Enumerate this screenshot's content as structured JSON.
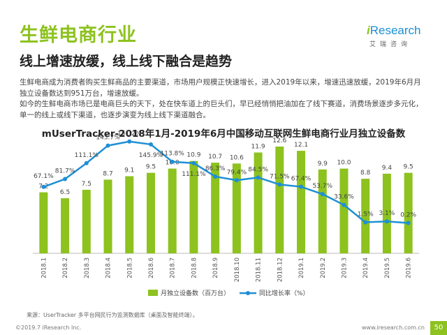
{
  "header": {
    "title": "生鲜电商行业",
    "subtitle": "线上增速放缓，线上线下融合是趋势"
  },
  "logo": {
    "i": "i",
    "brand": "Research",
    "cn": "艾瑞咨询"
  },
  "description": {
    "paragraph1": "生鲜电商成为消费者购买生鲜商品的主要渠道，市场用户规模正快速增长，进入2019年以来，增速迅速放缓，2019年6月月独立设备数达到951万台，增速放缓。",
    "paragraph2": "如今的生鲜电商市场已是电商巨头的天下，处在快车道上的巨头们，早已经悄悄把油加在了线下赛道，消费场景逐步多元化，单一的线上或线下渠道，也逐步演变为线上线下渠道融合。"
  },
  "chart_data": {
    "type": "bar",
    "title": "mUserTracker-2018年1月-2019年6月中国移动互联网生鲜电商行业月独立设备数",
    "categories": [
      "2018.1",
      "2018.2",
      "2018.3",
      "2018.4",
      "2018.5",
      "2018.6",
      "2018.7",
      "2018.8",
      "2018.9",
      "2018.10",
      "2018.11",
      "2018.12",
      "2019.1",
      "2019.2",
      "2019.3",
      "2019.4",
      "2019.5",
      "2019.6"
    ],
    "series": [
      {
        "name": "月独立设备数（百万台）",
        "kind": "bar",
        "values": [
          7.2,
          6.5,
          7.5,
          8.7,
          9.1,
          9.5,
          10.0,
          10.9,
          10.7,
          10.6,
          11.9,
          12.6,
          12.1,
          9.9,
          10.0,
          8.8,
          9.4,
          9.5
        ],
        "labels": [
          "7.2",
          "6.5",
          "7.5",
          "8.7",
          "9.1",
          "9.5",
          "10.0",
          "10.9",
          "10.7",
          "10.6",
          "11.9",
          "12.6",
          "12.1",
          "9.9",
          "10.0",
          "8.8",
          "9.4",
          "9.5"
        ]
      },
      {
        "name": "同比增长率（%）",
        "kind": "line",
        "values": [
          67.1,
          81.7,
          111.1,
          143.7,
          151.2,
          145.9,
          113.8,
          111.1,
          86.3,
          79.4,
          84.5,
          71.5,
          67.4,
          53.7,
          33.6,
          1.5,
          3.1,
          0.2
        ],
        "labels": [
          "67.1%",
          "81.7%",
          "111.1%",
          "143.7%",
          "151.2%",
          "145.9%",
          "113.8%",
          "111.1%",
          "86.3%",
          "79.4%",
          "84.5%",
          "71.5%",
          "67.4%",
          "53.7%",
          "33.6%",
          "1.5%",
          "3.1%",
          "0.2%"
        ]
      }
    ],
    "bar_ylim": [
      0,
      14
    ],
    "line_ylim": [
      -60,
      160
    ],
    "legend_position": "bottom-center",
    "bar_color": "#8dc21f",
    "line_color": "#1e8fd5",
    "grid": false
  },
  "source": "来源：UserTracker 多平台网民行为监测数据库（桌面及智能终端）。",
  "footer": {
    "copyright": "©2019.7 iResearch Inc.",
    "website": "www.iresearch.com.cn",
    "page": "50"
  }
}
